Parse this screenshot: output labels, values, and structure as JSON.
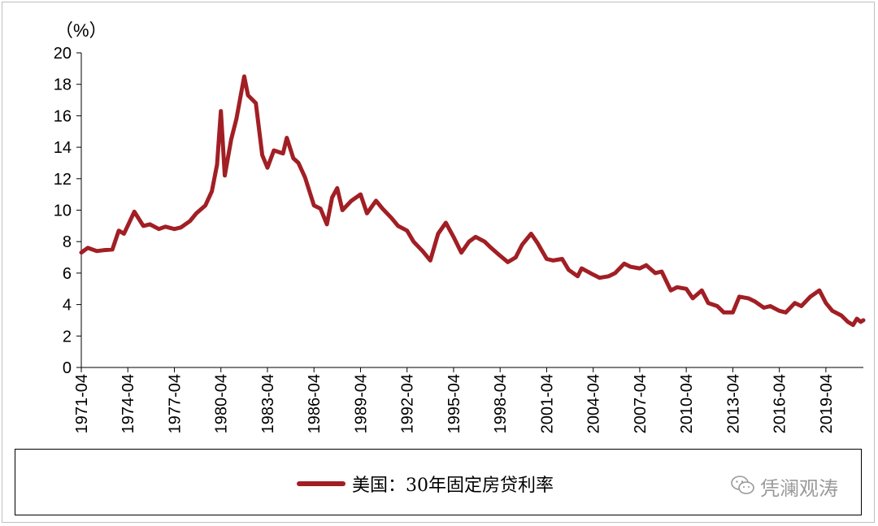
{
  "chart_data": {
    "type": "line",
    "title": "",
    "unit_label": "（%）",
    "xlabel": "",
    "ylabel": "",
    "ylim": [
      0,
      20
    ],
    "yticks": [
      0,
      2,
      4,
      6,
      8,
      10,
      12,
      14,
      16,
      18,
      20
    ],
    "x_tick_labels": [
      "1971-04",
      "1974-04",
      "1977-04",
      "1980-04",
      "1983-04",
      "1986-04",
      "1989-04",
      "1992-04",
      "1995-04",
      "1998-04",
      "2001-04",
      "2004-04",
      "2007-04",
      "2010-04",
      "2013-04",
      "2016-04",
      "2019-04"
    ],
    "grid": false,
    "legend_position": "bottom",
    "series": [
      {
        "name": "美国：30年固定房贷利率",
        "color": "#a11f24",
        "points": [
          [
            "1971-04",
            7.3
          ],
          [
            "1971-09",
            7.6
          ],
          [
            "1972-04",
            7.4
          ],
          [
            "1972-09",
            7.45
          ],
          [
            "1973-04",
            7.5
          ],
          [
            "1973-09",
            8.7
          ],
          [
            "1974-01",
            8.5
          ],
          [
            "1974-09",
            9.9
          ],
          [
            "1975-04",
            9.0
          ],
          [
            "1975-09",
            9.1
          ],
          [
            "1976-04",
            8.8
          ],
          [
            "1976-09",
            8.95
          ],
          [
            "1977-04",
            8.8
          ],
          [
            "1977-09",
            8.9
          ],
          [
            "1978-04",
            9.3
          ],
          [
            "1978-09",
            9.8
          ],
          [
            "1979-04",
            10.3
          ],
          [
            "1979-09",
            11.2
          ],
          [
            "1980-01",
            12.9
          ],
          [
            "1980-04",
            16.3
          ],
          [
            "1980-07",
            12.2
          ],
          [
            "1980-12",
            14.5
          ],
          [
            "1981-04",
            15.8
          ],
          [
            "1981-10",
            18.5
          ],
          [
            "1982-01",
            17.3
          ],
          [
            "1982-07",
            16.8
          ],
          [
            "1982-12",
            13.5
          ],
          [
            "1983-04",
            12.7
          ],
          [
            "1983-09",
            13.8
          ],
          [
            "1984-04",
            13.6
          ],
          [
            "1984-07",
            14.6
          ],
          [
            "1984-12",
            13.3
          ],
          [
            "1985-04",
            13.0
          ],
          [
            "1985-09",
            12.1
          ],
          [
            "1986-04",
            10.3
          ],
          [
            "1986-09",
            10.1
          ],
          [
            "1987-02",
            9.1
          ],
          [
            "1987-06",
            10.8
          ],
          [
            "1987-10",
            11.4
          ],
          [
            "1988-02",
            10.0
          ],
          [
            "1988-09",
            10.6
          ],
          [
            "1989-04",
            11.0
          ],
          [
            "1989-09",
            9.8
          ],
          [
            "1990-04",
            10.6
          ],
          [
            "1990-09",
            10.1
          ],
          [
            "1991-04",
            9.5
          ],
          [
            "1991-09",
            9.0
          ],
          [
            "1992-04",
            8.7
          ],
          [
            "1992-09",
            8.0
          ],
          [
            "1993-04",
            7.4
          ],
          [
            "1993-10",
            6.8
          ],
          [
            "1994-04",
            8.5
          ],
          [
            "1994-10",
            9.2
          ],
          [
            "1995-04",
            8.3
          ],
          [
            "1995-10",
            7.3
          ],
          [
            "1996-04",
            8.0
          ],
          [
            "1996-09",
            8.3
          ],
          [
            "1997-04",
            8.0
          ],
          [
            "1997-09",
            7.6
          ],
          [
            "1998-04",
            7.1
          ],
          [
            "1998-10",
            6.7
          ],
          [
            "1999-04",
            7.0
          ],
          [
            "1999-09",
            7.8
          ],
          [
            "2000-04",
            8.5
          ],
          [
            "2000-09",
            7.9
          ],
          [
            "2001-04",
            6.9
          ],
          [
            "2001-09",
            6.8
          ],
          [
            "2002-04",
            6.9
          ],
          [
            "2002-09",
            6.2
          ],
          [
            "2003-04",
            5.8
          ],
          [
            "2003-07",
            6.3
          ],
          [
            "2004-04",
            5.9
          ],
          [
            "2004-09",
            5.7
          ],
          [
            "2005-04",
            5.8
          ],
          [
            "2005-09",
            6.0
          ],
          [
            "2006-04",
            6.6
          ],
          [
            "2006-09",
            6.4
          ],
          [
            "2007-04",
            6.3
          ],
          [
            "2007-09",
            6.5
          ],
          [
            "2008-04",
            6.0
          ],
          [
            "2008-09",
            6.1
          ],
          [
            "2009-04",
            4.9
          ],
          [
            "2009-09",
            5.1
          ],
          [
            "2010-04",
            5.0
          ],
          [
            "2010-09",
            4.4
          ],
          [
            "2011-04",
            4.9
          ],
          [
            "2011-09",
            4.1
          ],
          [
            "2012-04",
            3.9
          ],
          [
            "2012-09",
            3.5
          ],
          [
            "2013-04",
            3.5
          ],
          [
            "2013-09",
            4.5
          ],
          [
            "2014-04",
            4.4
          ],
          [
            "2014-09",
            4.2
          ],
          [
            "2015-04",
            3.8
          ],
          [
            "2015-09",
            3.9
          ],
          [
            "2016-04",
            3.6
          ],
          [
            "2016-09",
            3.5
          ],
          [
            "2017-04",
            4.1
          ],
          [
            "2017-09",
            3.9
          ],
          [
            "2018-04",
            4.5
          ],
          [
            "2018-11",
            4.9
          ],
          [
            "2019-04",
            4.1
          ],
          [
            "2019-09",
            3.6
          ],
          [
            "2020-04",
            3.3
          ],
          [
            "2020-09",
            2.9
          ],
          [
            "2021-01",
            2.7
          ],
          [
            "2021-04",
            3.1
          ],
          [
            "2021-07",
            2.9
          ],
          [
            "2021-09",
            3.0
          ]
        ]
      }
    ]
  },
  "watermark": {
    "text": "凭澜观涛",
    "icon": "wechat-icon"
  }
}
